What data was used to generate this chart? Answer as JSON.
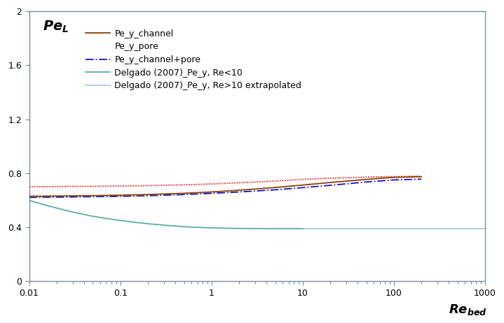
{
  "title": "",
  "ylabel_inside": "Pe_L",
  "xlabel_inside": "Re_bed",
  "xlim": [
    0.01,
    1000
  ],
  "ylim": [
    0,
    2
  ],
  "yticks": [
    0,
    0.4,
    0.8,
    1.2,
    1.6,
    2.0
  ],
  "background_color": "#ffffff",
  "legend_entries": [
    "Pe_y_channel",
    "Pe_y_pore",
    "Pe_y_channel+pore",
    "Delgado (2007)_Pe_y, Re<10",
    "Delgado (2007)_Pe_y, Re>10 extrapolated"
  ],
  "line_styles": [
    {
      "color": "#8B4000",
      "linestyle": "-",
      "linewidth": 1.3
    },
    {
      "color": "#FF2222",
      "linestyle": "--",
      "linewidth": 1.3
    },
    {
      "color": "#1111CC",
      "linestyle": "-.",
      "linewidth": 1.3
    },
    {
      "color": "#5AADA0",
      "linestyle": "-",
      "linewidth": 1.3
    },
    {
      "color": "#AACCDD",
      "linestyle": "-",
      "linewidth": 1.3
    }
  ],
  "x_channel": [
    0.01,
    0.02,
    0.05,
    0.1,
    0.2,
    0.5,
    1.0,
    2.0,
    5.0,
    10.0,
    20.0,
    50.0,
    100.0,
    200.0
  ],
  "y_channel": [
    0.63,
    0.632,
    0.635,
    0.638,
    0.643,
    0.652,
    0.662,
    0.675,
    0.695,
    0.713,
    0.732,
    0.755,
    0.77,
    0.775
  ],
  "x_pore": [
    0.01,
    0.02,
    0.05,
    0.1,
    0.2,
    0.5,
    1.0,
    2.0,
    5.0,
    10.0,
    20.0,
    50.0,
    100.0,
    200.0
  ],
  "y_pore": [
    0.7,
    0.702,
    0.704,
    0.706,
    0.709,
    0.715,
    0.721,
    0.73,
    0.743,
    0.755,
    0.764,
    0.772,
    0.776,
    0.779
  ],
  "x_channel_pore": [
    0.01,
    0.02,
    0.05,
    0.1,
    0.2,
    0.5,
    1.0,
    2.0,
    5.0,
    10.0,
    20.0,
    50.0,
    100.0,
    200.0
  ],
  "y_channel_pore": [
    0.622,
    0.624,
    0.627,
    0.63,
    0.634,
    0.643,
    0.652,
    0.662,
    0.678,
    0.694,
    0.711,
    0.736,
    0.751,
    0.757
  ],
  "x_delgado_low": [
    0.01,
    0.015,
    0.02,
    0.03,
    0.05,
    0.07,
    0.1,
    0.15,
    0.2,
    0.3,
    0.5,
    0.7,
    1.0,
    1.5,
    2.0,
    3.0,
    5.0,
    7.0,
    10.0
  ],
  "y_delgado_low": [
    0.6,
    0.565,
    0.543,
    0.513,
    0.482,
    0.466,
    0.451,
    0.436,
    0.427,
    0.416,
    0.405,
    0.4,
    0.396,
    0.393,
    0.392,
    0.391,
    0.39,
    0.39,
    0.39
  ],
  "x_delgado_high": [
    10.0,
    20.0,
    50.0,
    100.0,
    200.0,
    500.0,
    1000.0
  ],
  "y_delgado_high": [
    0.39,
    0.39,
    0.39,
    0.39,
    0.39,
    0.39,
    0.39
  ],
  "spine_color": "#7090A0",
  "tick_color": "#7090A0",
  "axis_label_color": "#000000",
  "legend_fontsize": 9,
  "tick_fontsize": 9
}
